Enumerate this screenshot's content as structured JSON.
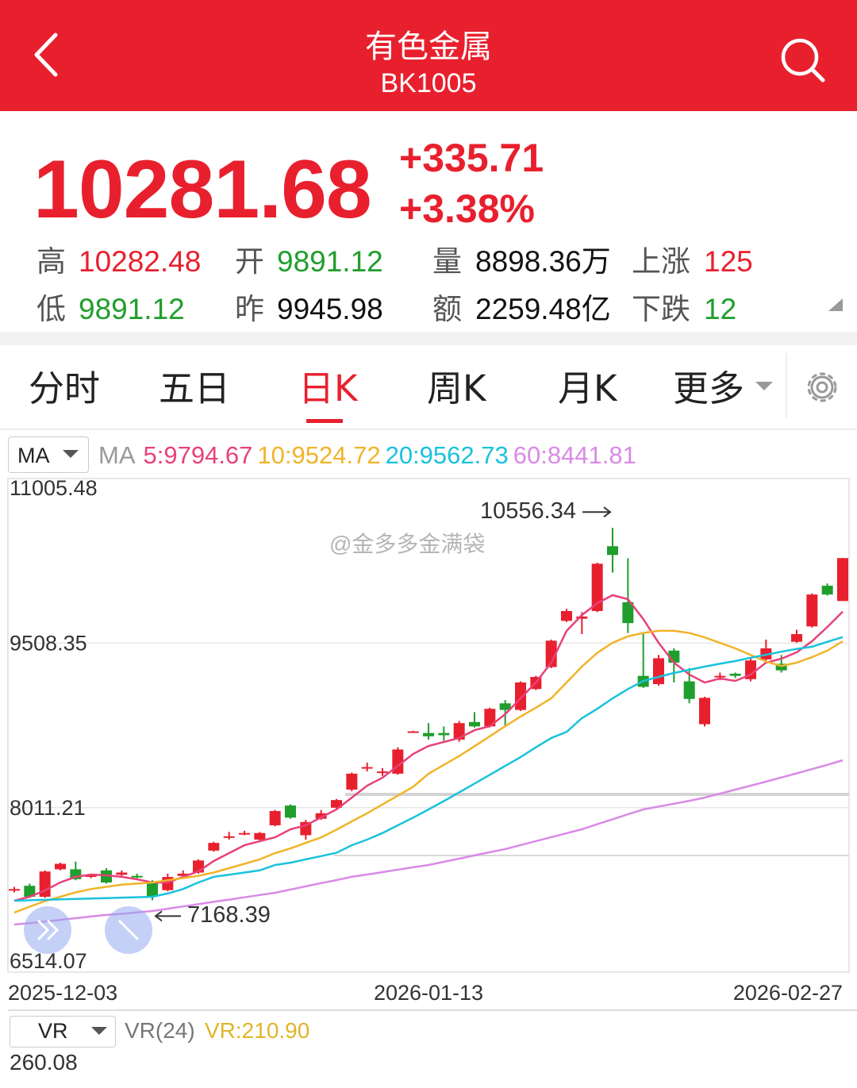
{
  "header": {
    "title": "有色金属",
    "code": "BK1005"
  },
  "quote": {
    "price": "10281.68",
    "change": "+335.71",
    "change_pct": "+3.38%",
    "stats": [
      {
        "label": "高",
        "value": "10282.48"
      },
      {
        "label": "开",
        "value": "9891.12"
      },
      {
        "label": "量",
        "value": "8898.36万"
      },
      {
        "label": "上涨",
        "value": "125"
      },
      {
        "label": "低",
        "value": "9891.12"
      },
      {
        "label": "昨",
        "value": "9945.98"
      },
      {
        "label": "额",
        "value": "2259.48亿"
      },
      {
        "label": "下跌",
        "value": "12"
      }
    ]
  },
  "tabs": [
    "分时",
    "五日",
    "日K",
    "周K",
    "月K",
    "更多"
  ],
  "active_tab": 2,
  "watermark": "@金多多金满袋",
  "chart_data": {
    "type": "candlestick",
    "indicator": "MA",
    "indicator_label": "MA",
    "categories": [
      "2025-12-03",
      null,
      null,
      null,
      null,
      null,
      null,
      null,
      null,
      null,
      null,
      null,
      null,
      null,
      null,
      null,
      null,
      null,
      null,
      null,
      null,
      null,
      null,
      null,
      null,
      null,
      null,
      "2026-01-13",
      null,
      null,
      null,
      null,
      null,
      null,
      null,
      null,
      null,
      null,
      null,
      null,
      null,
      null,
      null,
      null,
      null,
      null,
      null,
      null,
      null,
      null,
      null,
      null,
      null,
      null,
      "2026-02-27"
    ],
    "open": [
      7262,
      7300,
      7200,
      7450,
      7450,
      7380,
      7440,
      7400,
      7390,
      7340,
      7260,
      7390,
      7420,
      7620,
      7740,
      7770,
      7720,
      7850,
      8030,
      7760,
      7910,
      8010,
      8175,
      8370,
      8330,
      8320,
      8700,
      8690,
      8690,
      8630,
      8790,
      8750,
      8960,
      8900,
      9090,
      9290,
      9710,
      9730,
      9800,
      10390,
      9880,
      9210,
      9135,
      9440,
      9160,
      8770,
      9200,
      9230,
      9180,
      9360,
      9320,
      9520,
      9660,
      10030,
      9891.12
    ],
    "high": [
      7290,
      7320,
      7440,
      7510,
      7520,
      7400,
      7460,
      7440,
      7410,
      7350,
      7410,
      7440,
      7540,
      7700,
      7790,
      7800,
      7790,
      7990,
      8040,
      7900,
      7990,
      8090,
      8330,
      8420,
      8370,
      8560,
      8710,
      8780,
      8750,
      8800,
      8880,
      8920,
      8990,
      9160,
      9210,
      9540,
      9820,
      9790,
      10240,
      10556.34,
      10280,
      9590,
      9400,
      9460,
      9280,
      9020,
      9240,
      9240,
      9370,
      9540,
      9400,
      9630,
      9960,
      10050,
      10282.48
    ],
    "low": [
      7240,
      7190,
      7190,
      7440,
      7350,
      7370,
      7320,
      7390,
      7370,
      7168.39,
      7250,
      7380,
      7410,
      7610,
      7720,
      7760,
      7710,
      7840,
      7910,
      7720,
      7900,
      8000,
      8160,
      8340,
      8300,
      8310,
      8695,
      8630,
      8620,
      8610,
      8740,
      8740,
      8760,
      8890,
      9080,
      9280,
      9700,
      9590,
      9790,
      10150,
      9600,
      9100,
      9120,
      9150,
      8960,
      8750,
      9170,
      9190,
      9160,
      9350,
      9240,
      9510,
      9650,
      9940,
      9891.12
    ],
    "close": [
      7270,
      7200,
      7430,
      7500,
      7360,
      7395,
      7330,
      7420,
      7380,
      7200,
      7380,
      7410,
      7530,
      7690,
      7750,
      7780,
      7780,
      7980,
      7920,
      7880,
      7960,
      8080,
      8320,
      8380,
      8340,
      8540,
      8705,
      8660,
      8670,
      8780,
      8750,
      8910,
      8900,
      9150,
      9200,
      9530,
      9800,
      9750,
      10230,
      10310,
      9690,
      9110,
      9370,
      9330,
      9000,
      9010,
      9210,
      9210,
      9350,
      9460,
      9260,
      9590,
      9950,
      9950,
      10281.68
    ],
    "up_color": "#e8202e",
    "down_color": "#1f9e2c",
    "series": [
      {
        "name": "5:9794.67",
        "color": "#e8417a",
        "values": [
          7164,
          7200,
          7258,
          7330,
          7381,
          7402,
          7395,
          7381,
          7359,
          7330,
          7330,
          7381,
          7431,
          7525,
          7597,
          7669,
          7705,
          7741,
          7814,
          7850,
          7922,
          7994,
          8102,
          8211,
          8283,
          8391,
          8500,
          8572,
          8608,
          8644,
          8716,
          8752,
          8861,
          9005,
          9150,
          9330,
          9619,
          9763,
          9872,
          9944,
          9908,
          9727,
          9511,
          9330,
          9222,
          9149,
          9186,
          9164,
          9222,
          9330,
          9366,
          9424,
          9525,
          9655,
          9794.67
        ]
      },
      {
        "name": "10:9524.72",
        "color": "#f0b429",
        "values": [
          7056,
          7110,
          7160,
          7200,
          7240,
          7270,
          7290,
          7310,
          7320,
          7330,
          7350,
          7370,
          7390,
          7420,
          7460,
          7500,
          7540,
          7597,
          7640,
          7690,
          7740,
          7810,
          7886,
          7960,
          8040,
          8120,
          8200,
          8319,
          8400,
          8480,
          8570,
          8660,
          8752,
          8840,
          8920,
          9005,
          9150,
          9294,
          9420,
          9511,
          9570,
          9600,
          9620,
          9620,
          9600,
          9560,
          9510,
          9460,
          9400,
          9340,
          9300,
          9330,
          9380,
          9440,
          9524.72
        ]
      },
      {
        "name": "20:9562.73",
        "color": "#19c2dc",
        "values": [
          7164,
          7168,
          7172,
          7176,
          7180,
          7184,
          7188,
          7192,
          7196,
          7200,
          7230,
          7270,
          7330,
          7381,
          7400,
          7420,
          7440,
          7489,
          7510,
          7540,
          7570,
          7600,
          7669,
          7720,
          7780,
          7850,
          7920,
          7994,
          8070,
          8150,
          8230,
          8310,
          8391,
          8470,
          8560,
          8644,
          8700,
          8825,
          8910,
          9005,
          9090,
          9164,
          9200,
          9236,
          9265,
          9294,
          9320,
          9345,
          9375,
          9402,
          9430,
          9455,
          9475,
          9520,
          9562.73
        ]
      },
      {
        "name": "60:8441.81",
        "color": "#d98ae6",
        "values": [
          6947,
          6960,
          6975,
          6990,
          7005,
          7020,
          7035,
          7045,
          7058,
          7070,
          7091,
          7112,
          7133,
          7154,
          7174,
          7195,
          7216,
          7236,
          7265,
          7295,
          7324,
          7352,
          7381,
          7402,
          7424,
          7446,
          7468,
          7489,
          7518,
          7547,
          7576,
          7605,
          7633,
          7670,
          7706,
          7742,
          7778,
          7814,
          7860,
          7905,
          7950,
          7994,
          8020,
          8046,
          8073,
          8102,
          8138,
          8175,
          8211,
          8247,
          8285,
          8323,
          8362,
          8400,
          8441.81
        ]
      }
    ],
    "ylim": [
      6514.07,
      11005.48
    ],
    "yticks": [
      11005.48,
      9508.35,
      8011.21,
      6514.07
    ],
    "grid": true
  },
  "vr": {
    "indicator": "VR",
    "label": "VR(24)",
    "value": "VR:210.90",
    "top": "260.08"
  }
}
